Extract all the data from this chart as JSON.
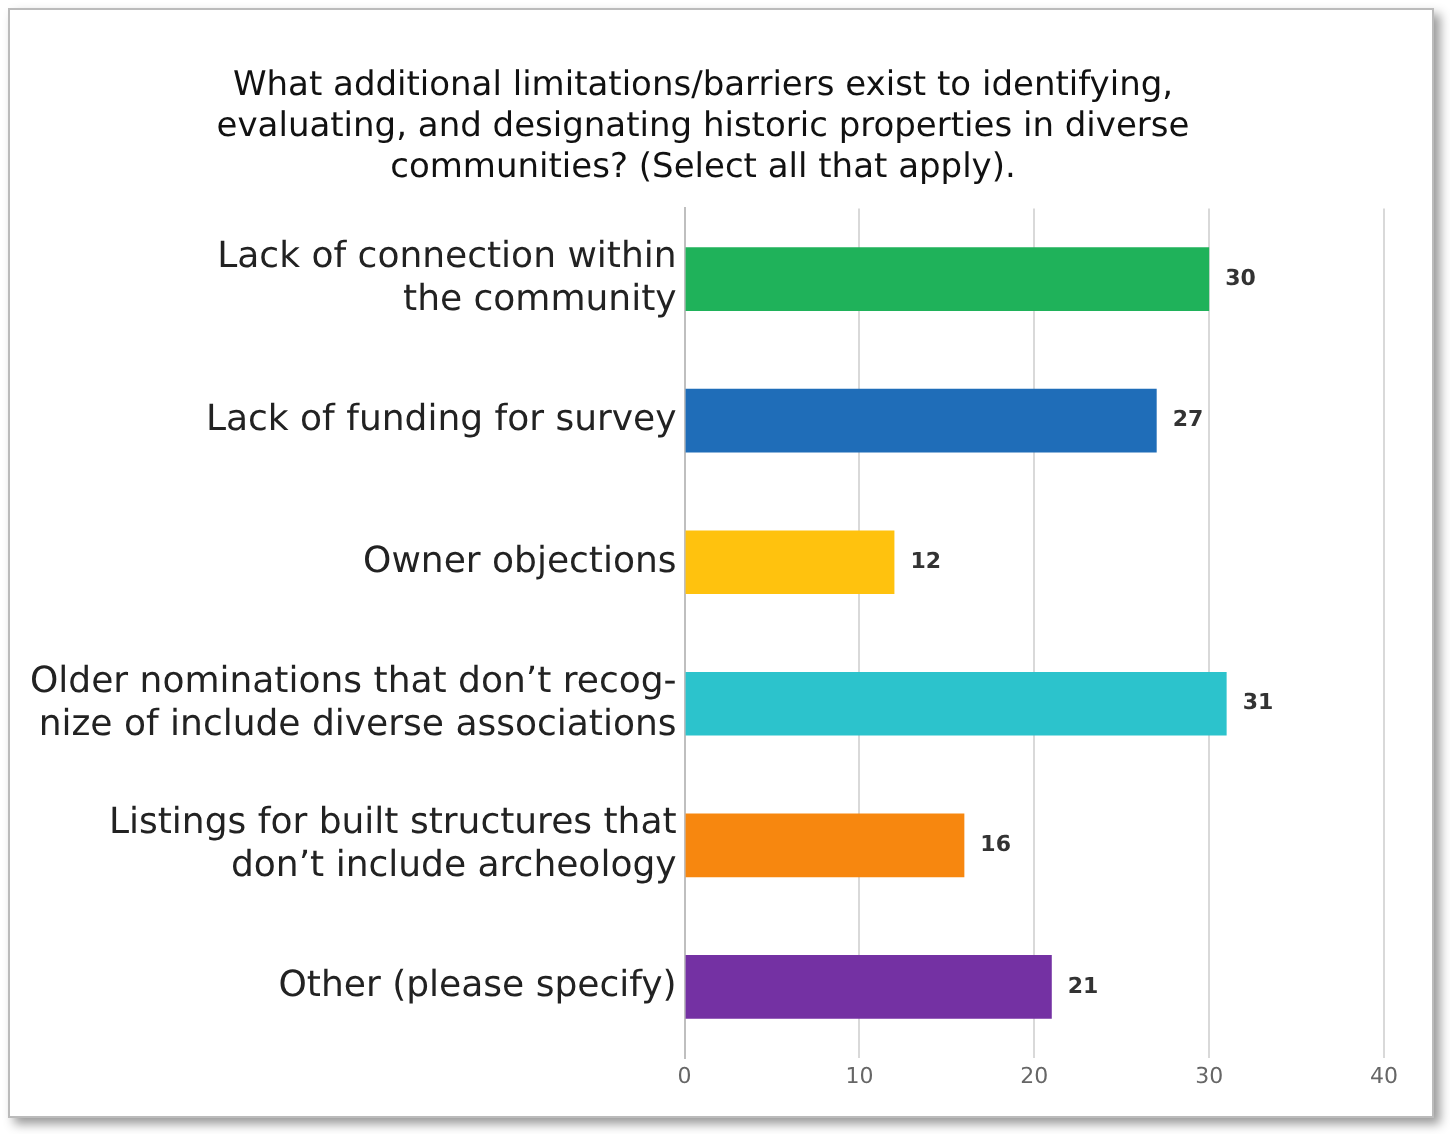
{
  "chart_data": {
    "type": "bar",
    "orientation": "horizontal",
    "title": "What additional limitations/barriers exist to identifying,\nevaluating, and designating historic properties in diverse\ncommunities? (Select all that apply).",
    "categories": [
      "Lack of connection within\nthe community",
      "Lack of funding for survey",
      "Owner objections",
      "Older nominations that don’t recog-\nnize of include diverse associations",
      "Listings for built structures that\ndon’t include archeology",
      "Other (please specify)"
    ],
    "values": [
      30,
      27,
      12,
      31,
      16,
      21
    ],
    "colors": [
      "#1fb25a",
      "#1f6db8",
      "#ffc20e",
      "#2cc3cc",
      "#f7870f",
      "#7431a3"
    ],
    "xlim": [
      0,
      40
    ],
    "xticks": [
      0,
      10,
      20,
      30,
      40
    ],
    "grid": "x",
    "data_labels": true
  }
}
